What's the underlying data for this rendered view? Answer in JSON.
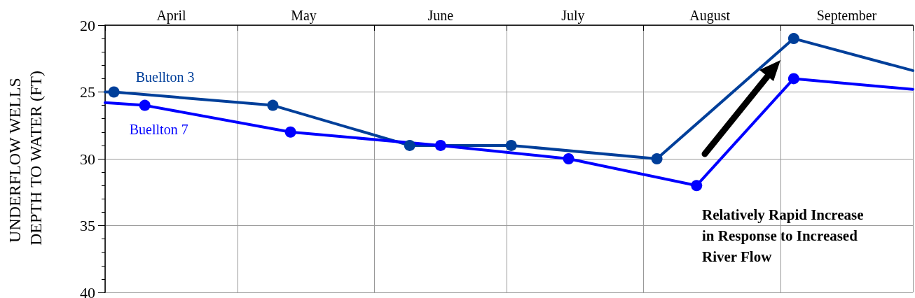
{
  "chart_data": {
    "type": "line",
    "ylabel": "UNDERFLOW WELLS DEPTH TO WATER (FT)",
    "xlim": [
      "--04-01",
      "--10-01"
    ],
    "xticks": [
      {
        "value": "--04-01",
        "label": null
      },
      {
        "value": "--05-01",
        "label": null
      },
      {
        "value": "--06-01",
        "label": null
      },
      {
        "value": "--07-01",
        "label": null
      },
      {
        "value": "--08-01",
        "label": null
      },
      {
        "value": "--09-01",
        "label": null
      },
      {
        "value": "--10-01",
        "label": null
      },
      {
        "value": "--04-16",
        "label": "April"
      },
      {
        "value": "--05-16",
        "label": "May"
      },
      {
        "value": "--06-16",
        "label": "June"
      },
      {
        "value": "--07-16",
        "label": "July"
      },
      {
        "value": "--08-16",
        "label": "August"
      },
      {
        "value": "--09-16",
        "label": "September"
      }
    ],
    "ylim": [
      40,
      20
    ],
    "yticks": [
      20,
      25,
      30,
      35,
      40
    ],
    "grid": true,
    "marker": "circle",
    "line_style": "solid",
    "legend": false,
    "series": [
      {
        "name": "Buellton 3",
        "color": "#003f9a",
        "x": [
          "--04-01",
          "--04-03",
          "--05-09",
          "--06-09",
          "--07-02",
          "--08-04",
          "--09-04",
          "--10-01"
        ],
        "values": [
          25,
          25,
          26,
          29,
          29,
          30,
          21,
          23.4
        ]
      },
      {
        "name": "Buellton 7",
        "color": "#0000ff",
        "x": [
          "--04-01",
          "--04-10",
          "--05-13",
          "--06-16",
          "--07-15",
          "--08-13",
          "--09-04",
          "--10-01"
        ],
        "values": [
          25.8,
          26,
          28,
          29,
          30,
          32,
          24,
          24.8
        ]
      }
    ],
    "annotations": [
      "Relatively Rapid Increase in Response to Increased River Flow"
    ]
  }
}
